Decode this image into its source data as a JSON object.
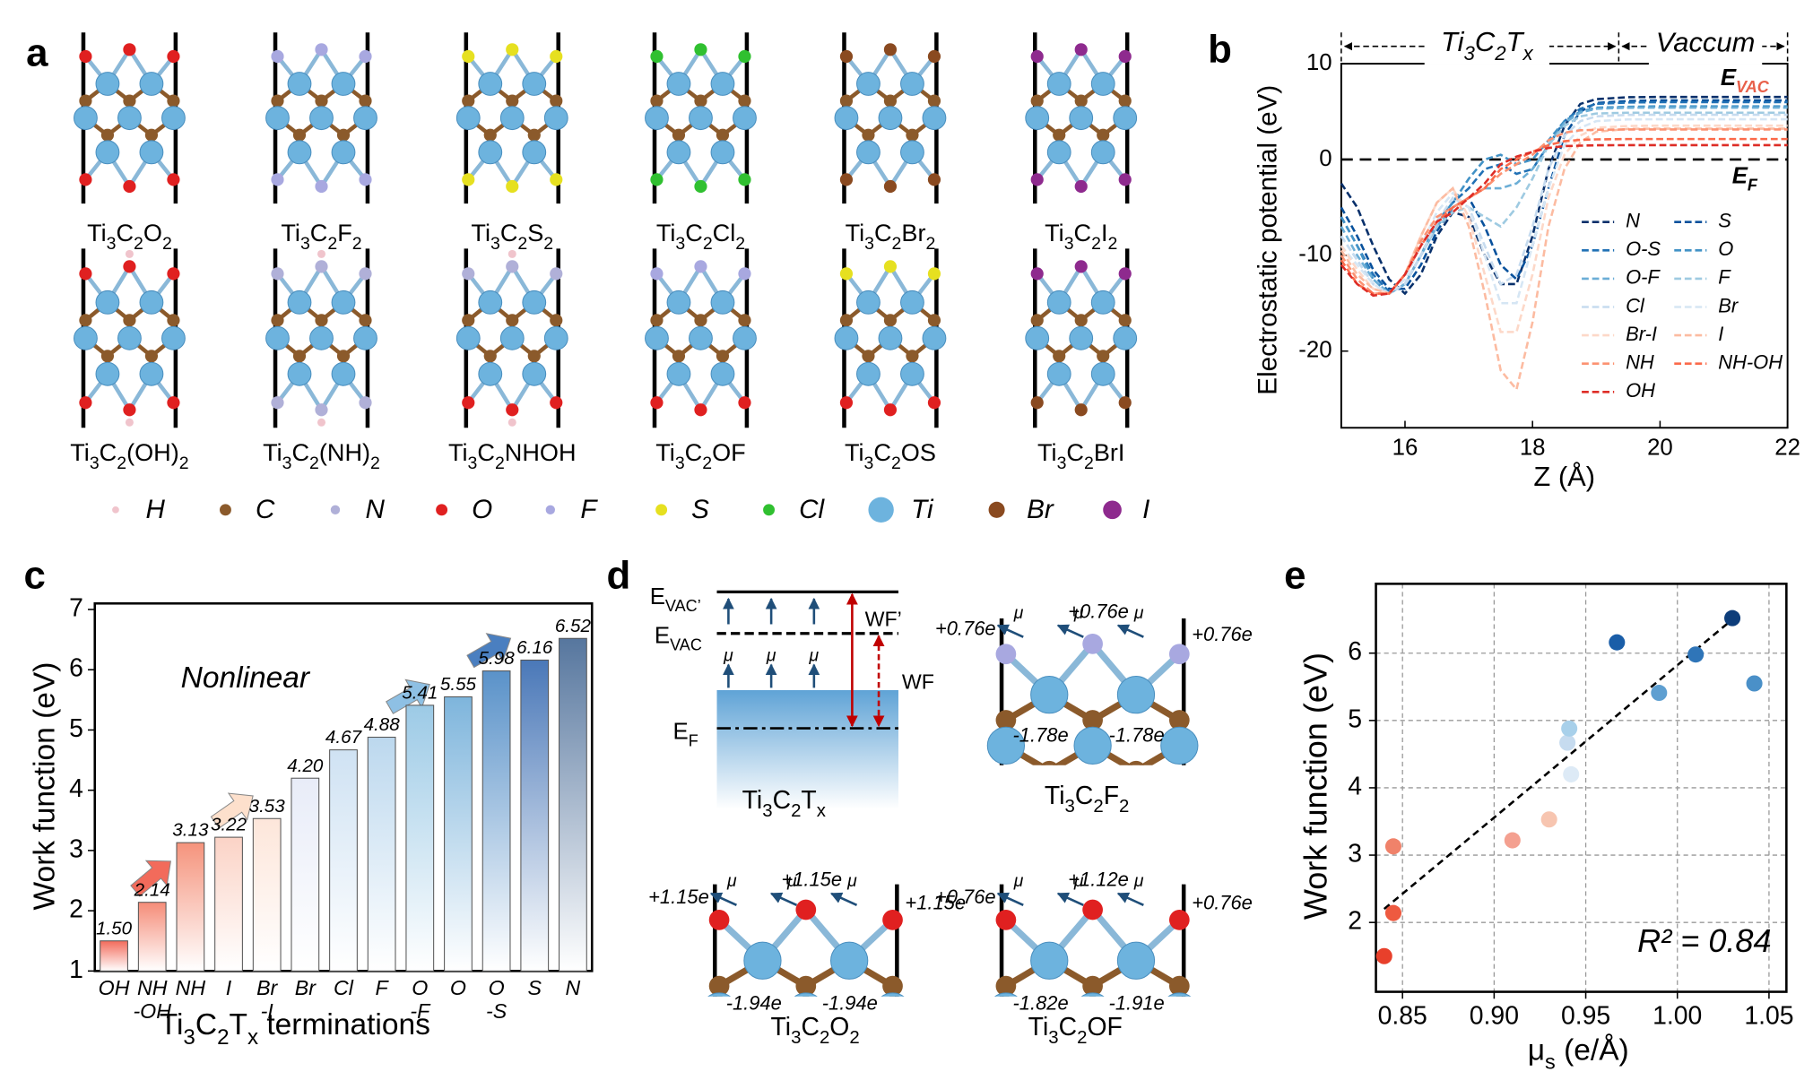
{
  "panel_labels": [
    "a",
    "b",
    "c",
    "d",
    "e"
  ],
  "panel_a": {
    "structures": [
      "Ti3C2O2",
      "Ti3C2F2",
      "Ti3C2S2",
      "Ti3C2Cl2",
      "Ti3C2Br2",
      "Ti3C2I2",
      "Ti3C2(OH)2",
      "Ti3C2(NH)2",
      "Ti3C2NHOH",
      "Ti3C2OF",
      "Ti3C2OS",
      "Ti3C2BrI"
    ],
    "legend": [
      {
        "name": "H",
        "color": "#f0c4cc"
      },
      {
        "name": "C",
        "color": "#8b5a2b"
      },
      {
        "name": "N",
        "color": "#b0b0d8"
      },
      {
        "name": "O",
        "color": "#e02020"
      },
      {
        "name": "F",
        "color": "#a8a8e0"
      },
      {
        "name": "S",
        "color": "#e6e020"
      },
      {
        "name": "Cl",
        "color": "#30c030"
      },
      {
        "name": "Ti",
        "color": "#6db3de"
      },
      {
        "name": "Br",
        "color": "#8a4a20"
      },
      {
        "name": "I",
        "color": "#8e2a8e"
      }
    ]
  },
  "panel_d": {
    "levels": {
      "evac_prime": [
        "E",
        "VAC’"
      ],
      "evac": [
        "E",
        "VAC"
      ],
      "ef": [
        "E",
        "F"
      ]
    },
    "wf_prime": "WF’",
    "wf": "WF",
    "mu": "μ",
    "slab": "Ti3C2Tx",
    "structures": [
      {
        "label": "Ti3C2F2",
        "charges": [
          "+0.76e",
          "+0.76e",
          "+0.76e",
          "-1.78e",
          "-1.78e"
        ]
      },
      {
        "label": "Ti3C2O2",
        "charges": [
          "+1.15e",
          "+1.15e",
          "+1.15e",
          "-1.94e",
          "-1.94e"
        ]
      },
      {
        "label": "Ti3C2OF",
        "charges": [
          "+0.76e",
          "+1.12e",
          "+0.76e",
          "-1.82e",
          "-1.91e"
        ]
      }
    ]
  },
  "chart_data": [
    {
      "type": "line",
      "x_label": "Z (Å)",
      "y_label": "Electrostatic potential (eV)",
      "region_labels": [
        "Ti3C2Tx",
        "Vaccum"
      ],
      "evac": [
        "E",
        "VAC"
      ],
      "ef": [
        "E",
        "F"
      ],
      "x": [
        15,
        15.25,
        15.5,
        15.75,
        16,
        16.25,
        16.5,
        16.75,
        17,
        17.25,
        17.5,
        17.75,
        18,
        18.25,
        18.5,
        18.75,
        19,
        19.5,
        20,
        21,
        22
      ],
      "xlim": [
        15,
        22
      ],
      "xticks": [
        16,
        18,
        20,
        22
      ],
      "ylim": [
        -28,
        10
      ],
      "yticks": [
        -20,
        -10,
        0,
        10
      ],
      "series": [
        {
          "name": "N",
          "color": "#08306b",
          "values": [
            -2.5,
            -5,
            -9,
            -12.5,
            -14,
            -12,
            -8,
            -5.5,
            -6,
            -10,
            -13,
            -13,
            -8,
            -1,
            3.5,
            5.8,
            6.3,
            6.5,
            6.52,
            6.52,
            6.52
          ]
        },
        {
          "name": "S",
          "color": "#08519c",
          "values": [
            -5,
            -8,
            -11.5,
            -13.5,
            -13.5,
            -11,
            -7.5,
            -5,
            -4,
            -7,
            -11,
            -12.5,
            -9,
            -3,
            2.5,
            5,
            5.9,
            6.1,
            6.16,
            6.16,
            6.16
          ]
        },
        {
          "name": "O-S",
          "color": "#2171b5",
          "values": [
            -6,
            -9,
            -12,
            -13.8,
            -13,
            -10,
            -6.5,
            -4.5,
            -3,
            -1,
            -0.5,
            -1.5,
            -1,
            1.5,
            4,
            5.3,
            5.8,
            5.95,
            5.98,
            5.98,
            5.98
          ]
        },
        {
          "name": "O",
          "color": "#4292c6",
          "values": [
            -6,
            -9,
            -12.5,
            -14,
            -13,
            -10,
            -6.5,
            -4.5,
            -2,
            0,
            0.5,
            -0.5,
            0,
            2,
            4,
            5,
            5.4,
            5.5,
            5.55,
            5.55,
            5.55
          ]
        },
        {
          "name": "O-F",
          "color": "#6baed6",
          "values": [
            -7,
            -10,
            -12.5,
            -14,
            -13,
            -10,
            -7,
            -5,
            -4,
            -3,
            -3,
            -2.5,
            -1,
            1.5,
            3.8,
            4.9,
            5.3,
            5.4,
            5.41,
            5.41,
            5.41
          ]
        },
        {
          "name": "F",
          "color": "#9ecae1",
          "values": [
            -8,
            -10.5,
            -13,
            -14,
            -13,
            -10,
            -7,
            -5.5,
            -5,
            -6,
            -7,
            -5,
            -2,
            1.5,
            3.5,
            4.5,
            4.8,
            4.88,
            4.88,
            4.88,
            4.88
          ]
        },
        {
          "name": "Cl",
          "color": "#c6dbef",
          "values": [
            -8,
            -10.5,
            -13,
            -14,
            -13,
            -10,
            -6.5,
            -4,
            -5,
            -9,
            -13,
            -12,
            -7,
            -1,
            2.5,
            4,
            4.5,
            4.65,
            4.67,
            4.67,
            4.67
          ]
        },
        {
          "name": "Br",
          "color": "#d6e6f4",
          "values": [
            -9,
            -11,
            -13,
            -14,
            -12.5,
            -9,
            -5.5,
            -3.5,
            -5,
            -10,
            -15,
            -15,
            -9,
            -3,
            1.5,
            3.3,
            4,
            4.18,
            4.2,
            4.2,
            4.2
          ]
        },
        {
          "name": "Br-I",
          "color": "#fdd8c8",
          "values": [
            -9,
            -11.5,
            -13.5,
            -14,
            -12,
            -8,
            -4.5,
            -3,
            -6,
            -12,
            -18,
            -18,
            -12,
            -4,
            0.5,
            2.5,
            3.3,
            3.5,
            3.53,
            3.53,
            3.53
          ]
        },
        {
          "name": "I",
          "color": "#fcbba1",
          "values": [
            -9.5,
            -12,
            -13.5,
            -14,
            -12,
            -8,
            -4.5,
            -3,
            -7,
            -14,
            -22,
            -24,
            -17,
            -7,
            -1,
            1.8,
            2.9,
            3.2,
            3.22,
            3.22,
            3.22
          ]
        },
        {
          "name": "NH",
          "color": "#fc9272",
          "values": [
            -10,
            -12.5,
            -14,
            -14,
            -12,
            -8.5,
            -6,
            -5,
            -4,
            -3,
            -1.5,
            -0.5,
            0.5,
            2,
            2.8,
            3.05,
            3.1,
            3.13,
            3.13,
            3.13,
            3.13
          ]
        },
        {
          "name": "NH-OH",
          "color": "#fb6a4a",
          "values": [
            -10.5,
            -13,
            -14,
            -14,
            -12,
            -9,
            -6.5,
            -5,
            -4,
            -3,
            -1,
            0,
            0.8,
            1.5,
            1.9,
            2.05,
            2.1,
            2.14,
            2.14,
            2.14,
            2.14
          ]
        },
        {
          "name": "OH",
          "color": "#de2d26",
          "values": [
            -11,
            -13,
            -14.2,
            -14,
            -12,
            -9,
            -6.5,
            -5.5,
            -4,
            -2.5,
            -0.5,
            0.3,
            0.8,
            1.2,
            1.4,
            1.45,
            1.48,
            1.5,
            1.5,
            1.5,
            1.5
          ]
        }
      ]
    },
    {
      "type": "bar",
      "x_label": "Ti3C2Tx terminations",
      "y_label": "Work function (eV)",
      "annotation": "Nonlinear",
      "categories": [
        [
          "OH"
        ],
        [
          "NH",
          "-OH"
        ],
        [
          "NH"
        ],
        [
          "I"
        ],
        [
          "Br",
          "-I"
        ],
        [
          "Br"
        ],
        [
          "Cl"
        ],
        [
          "F"
        ],
        [
          "O",
          "-F"
        ],
        [
          "O"
        ],
        [
          "O",
          "-S"
        ],
        [
          "S"
        ],
        [
          "N"
        ]
      ],
      "values": [
        1.5,
        2.14,
        3.13,
        3.22,
        3.53,
        4.2,
        4.67,
        4.88,
        5.41,
        5.55,
        5.98,
        6.16,
        6.52
      ],
      "value_labels": [
        "1.50",
        "2.14",
        "3.13",
        "3.22",
        "3.53",
        "4.20",
        "4.67",
        "4.88",
        "5.41",
        "5.55",
        "5.98",
        "6.16",
        "6.52"
      ],
      "colors": [
        "#f26b5b",
        "#f58c78",
        "#f5937c",
        "#fbd3c6",
        "#fde6da",
        "#e8ecf8",
        "#cfe2f3",
        "#bcd8ee",
        "#9ccae6",
        "#7eb5dc",
        "#5a92c9",
        "#4a78b8",
        "#56769e"
      ],
      "ylim": [
        1,
        7.1
      ],
      "yticks": [
        1,
        2,
        3,
        4,
        5,
        6,
        7
      ]
    },
    {
      "type": "scatter",
      "x_label": [
        "μ",
        "s",
        " (e/Å)"
      ],
      "y_label": "Work function (eV)",
      "annotation": "R² = 0.84",
      "x": [
        0.84,
        0.845,
        0.845,
        0.91,
        0.93,
        0.942,
        0.94,
        0.941,
        0.99,
        1.042,
        1.01,
        0.967,
        1.03
      ],
      "y": [
        1.5,
        2.14,
        3.13,
        3.22,
        3.53,
        4.2,
        4.67,
        4.88,
        5.41,
        5.55,
        5.98,
        6.16,
        6.52
      ],
      "colors": [
        "#e8402b",
        "#ee5a40",
        "#f0826a",
        "#f4a090",
        "#f7c5b0",
        "#ddeaf6",
        "#c6dbef",
        "#a8d0ea",
        "#5e9fd1",
        "#4a90c8",
        "#2f75b8",
        "#1a5ea8",
        "#0d3d7a"
      ],
      "fit_line": {
        "x": [
          0.84,
          1.03
        ],
        "y": [
          2.2,
          6.5
        ]
      },
      "xlim": [
        0.8355,
        1.0595
      ],
      "xticks": [
        0.85,
        {
          "value": 0.9,
          "label": "0.90"
        },
        0.95,
        {
          "value": 1,
          "label": "1.00"
        },
        1.05
      ],
      "ylim": [
        0.97,
        7.03
      ],
      "yticks": [
        2,
        3,
        4,
        5,
        6
      ],
      "grid": true
    }
  ]
}
